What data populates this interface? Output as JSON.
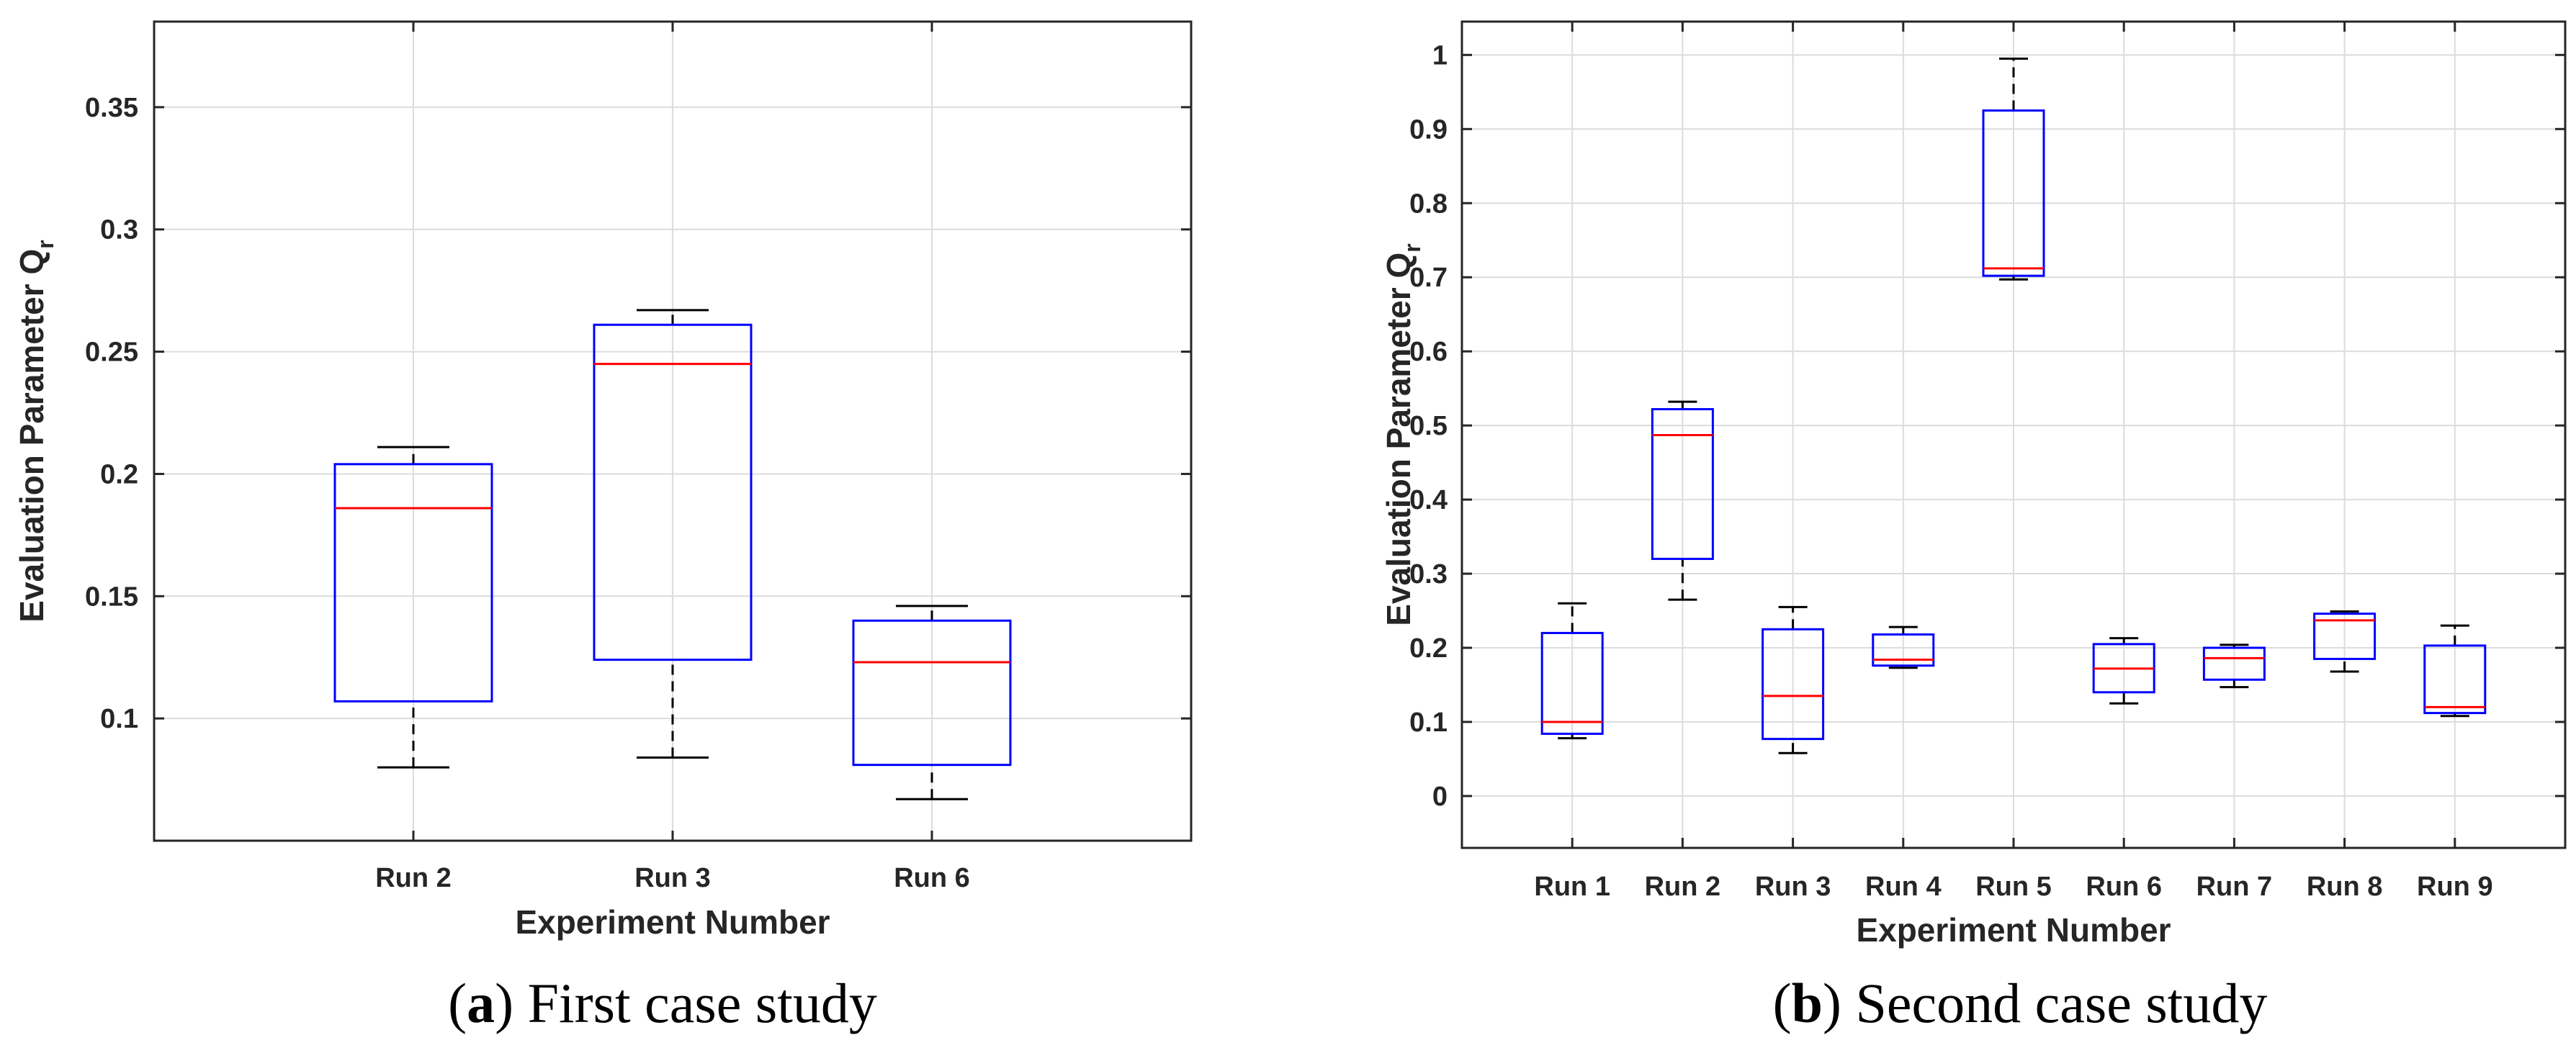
{
  "chart_data": [
    {
      "type": "box",
      "caption_letter": "a",
      "caption_text": "First case study",
      "xlabel": "Experiment Number",
      "ylabel": "Evaluation Parameter Q",
      "ylabel_subscript": "r",
      "ylim": [
        0.05,
        0.385
      ],
      "yticks": [
        0.1,
        0.15,
        0.2,
        0.25,
        0.3,
        0.35
      ],
      "ytick_labels": [
        "0.1",
        "0.15",
        "0.2",
        "0.25",
        "0.3",
        "0.35"
      ],
      "grid": true,
      "categories": [
        "Run 2",
        "Run 3",
        "Run 6"
      ],
      "boxes": [
        {
          "whisker_low": 0.08,
          "q1": 0.107,
          "median": 0.186,
          "q3": 0.204,
          "whisker_high": 0.211
        },
        {
          "whisker_low": 0.084,
          "q1": 0.124,
          "median": 0.245,
          "q3": 0.261,
          "whisker_high": 0.267
        },
        {
          "whisker_low": 0.067,
          "q1": 0.081,
          "median": 0.123,
          "q3": 0.14,
          "whisker_high": 0.146
        }
      ]
    },
    {
      "type": "box",
      "caption_letter": "b",
      "caption_text": "Second case study",
      "xlabel": "Experiment Number",
      "ylabel": "Evaluation Parameter Q",
      "ylabel_subscript": "r",
      "ylim": [
        -0.07,
        1.045
      ],
      "yticks": [
        0,
        0.1,
        0.2,
        0.3,
        0.4,
        0.5,
        0.6,
        0.7,
        0.8,
        0.9,
        1
      ],
      "ytick_labels": [
        "0",
        "0.1",
        "0.2",
        "0.3",
        "0.4",
        "0.5",
        "0.6",
        "0.7",
        "0.8",
        "0.9",
        "1"
      ],
      "grid": true,
      "categories": [
        "Run 1",
        "Run 2",
        "Run 3",
        "Run 4",
        "Run 5",
        "Run 6",
        "Run 7",
        "Run 8",
        "Run 9"
      ],
      "boxes": [
        {
          "whisker_low": 0.078,
          "q1": 0.084,
          "median": 0.1,
          "q3": 0.22,
          "whisker_high": 0.26
        },
        {
          "whisker_low": 0.265,
          "q1": 0.32,
          "median": 0.487,
          "q3": 0.522,
          "whisker_high": 0.532
        },
        {
          "whisker_low": 0.058,
          "q1": 0.077,
          "median": 0.135,
          "q3": 0.225,
          "whisker_high": 0.255
        },
        {
          "whisker_low": 0.173,
          "q1": 0.176,
          "median": 0.184,
          "q3": 0.218,
          "whisker_high": 0.228
        },
        {
          "whisker_low": 0.697,
          "q1": 0.702,
          "median": 0.712,
          "q3": 0.925,
          "whisker_high": 0.995
        },
        {
          "whisker_low": 0.125,
          "q1": 0.14,
          "median": 0.172,
          "q3": 0.205,
          "whisker_high": 0.213
        },
        {
          "whisker_low": 0.147,
          "q1": 0.157,
          "median": 0.186,
          "q3": 0.2,
          "whisker_high": 0.204
        },
        {
          "whisker_low": 0.168,
          "q1": 0.185,
          "median": 0.237,
          "q3": 0.246,
          "whisker_high": 0.249
        },
        {
          "whisker_low": 0.108,
          "q1": 0.112,
          "median": 0.12,
          "q3": 0.203,
          "whisker_high": 0.23
        }
      ]
    }
  ]
}
